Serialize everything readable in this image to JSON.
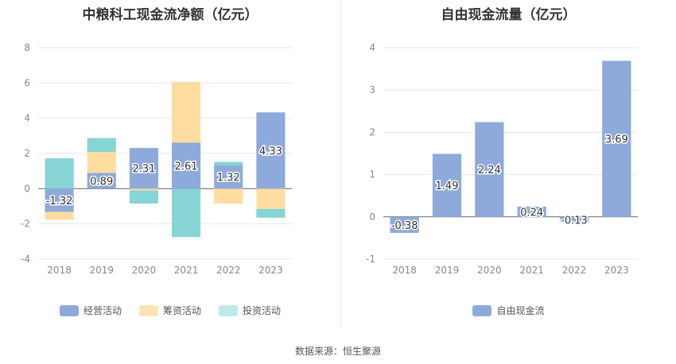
{
  "source": "数据来源：恒生聚源",
  "chart_data": [
    {
      "type": "bar",
      "stacked": true,
      "title": "中粮科工现金流净额（亿元）",
      "categories": [
        "2018",
        "2019",
        "2020",
        "2021",
        "2022",
        "2023"
      ],
      "ylim": [
        -4,
        8
      ],
      "yticks": [
        "8",
        "6",
        "4",
        "2",
        "0",
        "-2",
        "-4"
      ],
      "grid": true,
      "legend_position": "bottom",
      "series": [
        {
          "name": "经营活动",
          "color": "#8eaadb",
          "values": [
            -1.32,
            0.89,
            2.31,
            2.61,
            1.32,
            4.33
          ],
          "labels": [
            "-1.32",
            "0.89",
            "2.31",
            "2.61",
            "1.32",
            "4.33"
          ]
        },
        {
          "name": "筹资活动",
          "color": "#ffdca0",
          "values": [
            -0.45,
            1.2,
            -0.1,
            3.45,
            -0.85,
            -1.15
          ],
          "labels": [
            "",
            "",
            "",
            "",
            "",
            ""
          ]
        },
        {
          "name": "投资活动",
          "color": "#86d4d4",
          "values": [
            1.72,
            0.78,
            -0.75,
            -2.75,
            0.2,
            -0.5
          ],
          "labels": [
            "",
            "",
            "",
            "",
            "",
            ""
          ]
        }
      ]
    },
    {
      "type": "bar",
      "title": "自由现金流量（亿元）",
      "categories": [
        "2018",
        "2019",
        "2020",
        "2021",
        "2022",
        "2023"
      ],
      "ylim": [
        -1,
        4
      ],
      "yticks": [
        "4",
        "3",
        "2",
        "1",
        "0",
        "-1"
      ],
      "grid": true,
      "legend_position": "bottom",
      "series": [
        {
          "name": "自由现金流",
          "color": "#8eaadb",
          "values": [
            -0.38,
            1.49,
            2.24,
            0.24,
            -0.13,
            3.69
          ],
          "labels": [
            "-0.38",
            "1.49",
            "2.24",
            "0.24",
            "-0.13",
            "3.69"
          ]
        }
      ]
    }
  ]
}
